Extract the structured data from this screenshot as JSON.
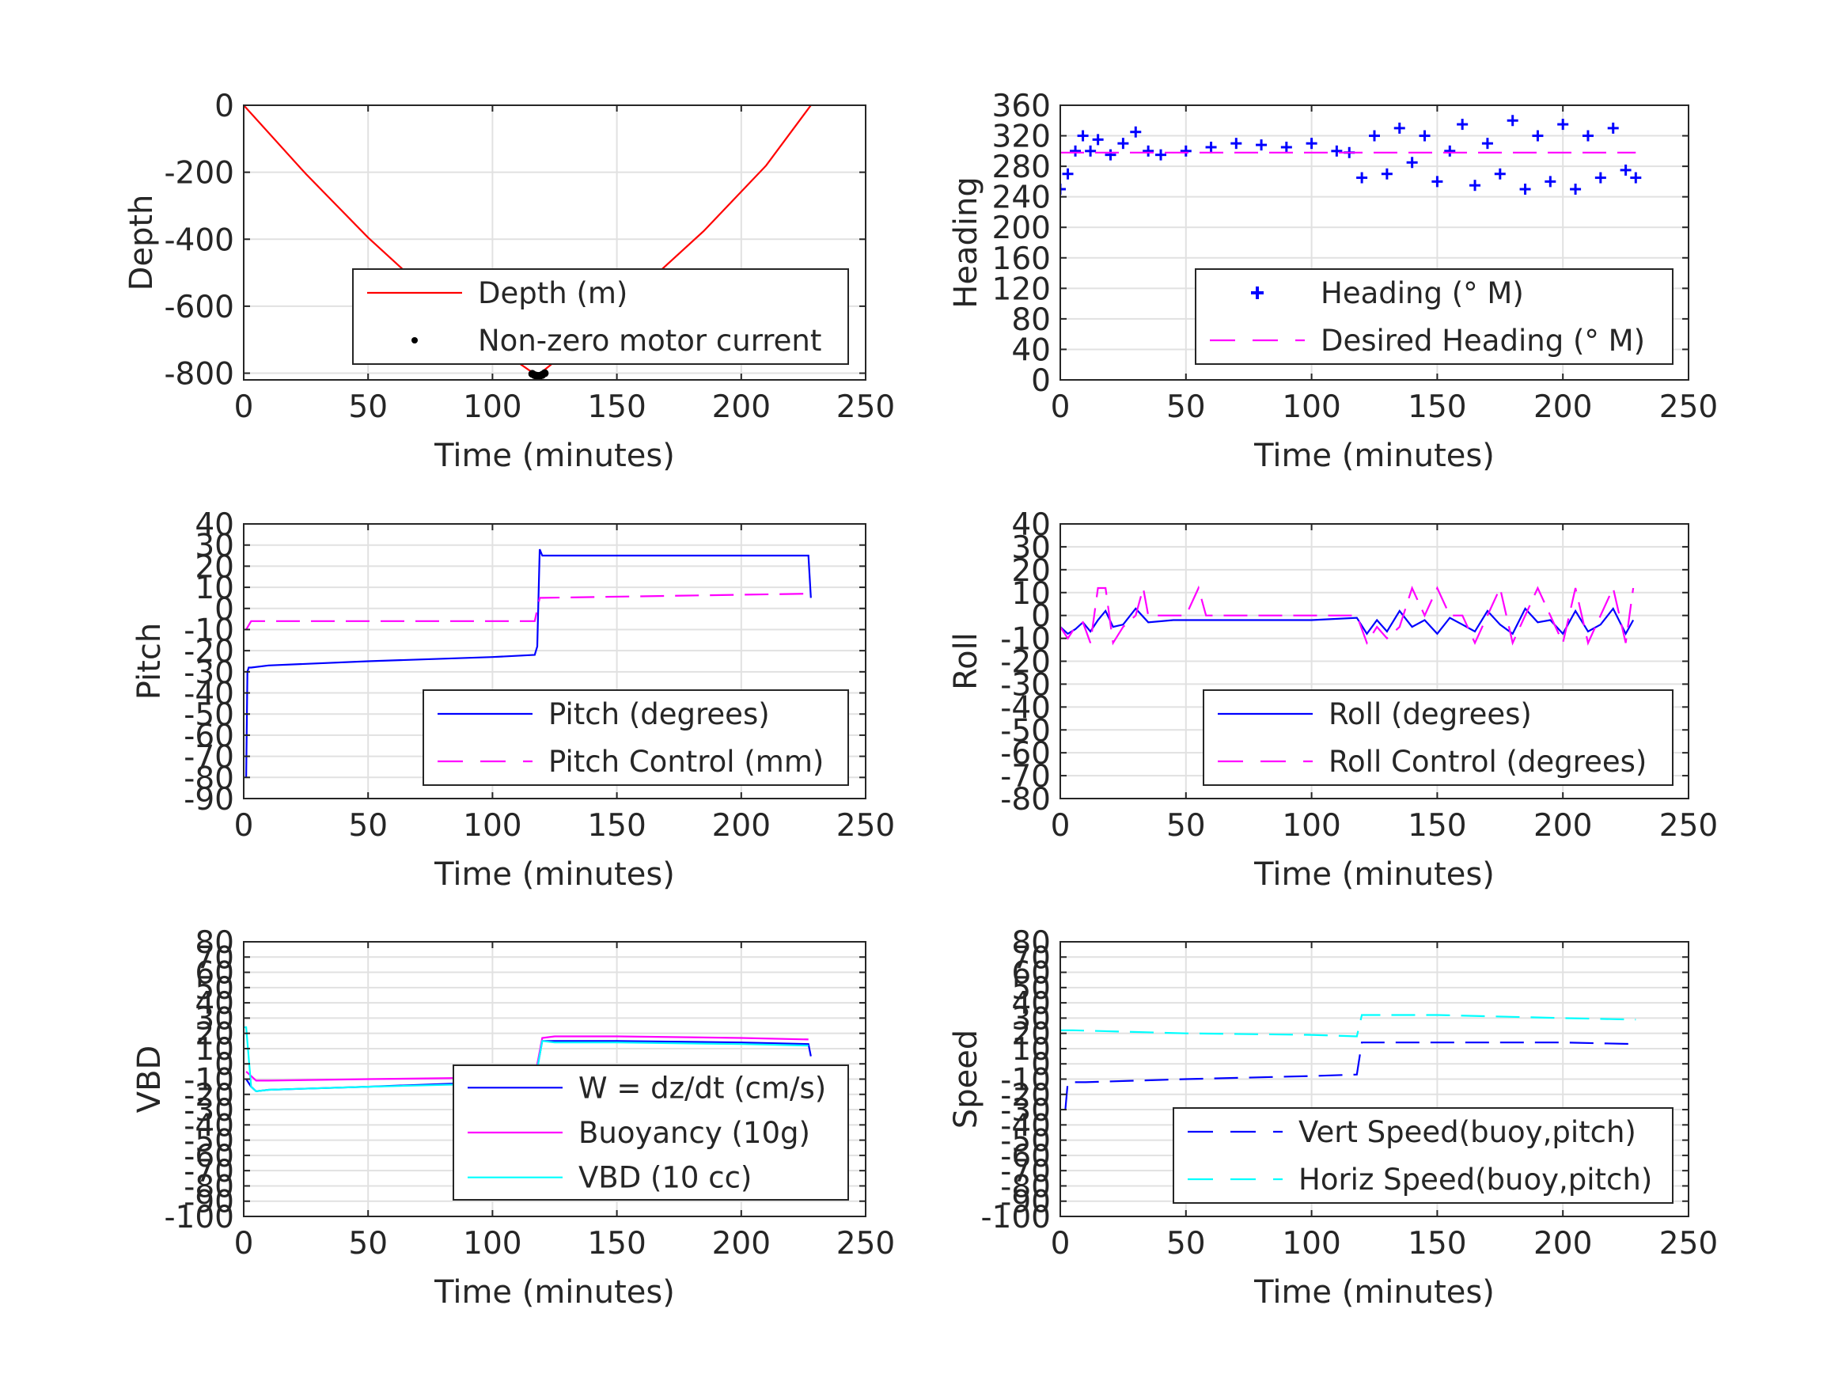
{
  "chart_data": [
    {
      "id": "depth",
      "type": "line",
      "xlabel": "Time (minutes)",
      "ylabel": "Depth",
      "xlim": [
        0,
        250
      ],
      "ylim": [
        -820,
        0
      ],
      "xticks": [
        "0",
        "50",
        "100",
        "150",
        "200",
        "250"
      ],
      "yticks": [
        "0",
        "-200",
        "-400",
        "-600",
        "-800"
      ],
      "ytick_values": [
        0,
        -200,
        -400,
        -600,
        -800
      ],
      "grid": true,
      "legend_position": "bottom-right",
      "series": [
        {
          "name": "Depth (m)",
          "color": "#ff0000",
          "style": "solid",
          "x": [
            0,
            25,
            50,
            75,
            100,
            118,
            135,
            160,
            185,
            210,
            228
          ],
          "y": [
            0,
            -205,
            -395,
            -565,
            -715,
            -808,
            -705,
            -545,
            -375,
            -180,
            0
          ]
        },
        {
          "name": "Non-zero motor current",
          "color": "#000000",
          "style": "dot",
          "x": [
            116,
            117,
            118,
            119,
            120,
            121
          ],
          "y": [
            -802,
            -806,
            -808,
            -808,
            -805,
            -800
          ]
        }
      ]
    },
    {
      "id": "heading",
      "type": "scatter",
      "xlabel": "Time (minutes)",
      "ylabel": "Heading",
      "xlim": [
        0,
        250
      ],
      "ylim": [
        0,
        360
      ],
      "xticks": [
        "0",
        "50",
        "100",
        "150",
        "200",
        "250"
      ],
      "yticks": [
        "360",
        "320",
        "280",
        "240",
        "200",
        "160",
        "120",
        "80",
        "40",
        "0"
      ],
      "ytick_values": [
        360,
        320,
        280,
        240,
        200,
        160,
        120,
        80,
        40,
        0
      ],
      "grid": true,
      "legend_position": "bottom-right",
      "series": [
        {
          "name": "Heading (° M)",
          "color": "#0000ff",
          "style": "plus",
          "x": [
            0,
            3,
            6,
            9,
            12,
            15,
            20,
            25,
            30,
            35,
            40,
            50,
            60,
            70,
            80,
            90,
            100,
            110,
            115,
            120,
            125,
            130,
            135,
            140,
            145,
            150,
            155,
            160,
            165,
            170,
            175,
            180,
            185,
            190,
            195,
            200,
            205,
            210,
            215,
            220,
            225,
            229
          ],
          "y": [
            250,
            270,
            300,
            320,
            300,
            315,
            295,
            310,
            325,
            300,
            295,
            300,
            305,
            310,
            308,
            305,
            310,
            300,
            298,
            265,
            320,
            270,
            330,
            285,
            320,
            260,
            300,
            335,
            255,
            310,
            270,
            340,
            250,
            320,
            260,
            335,
            250,
            320,
            265,
            330,
            275,
            265
          ]
        },
        {
          "name": "Desired Heading (° M)",
          "color": "#ff00ff",
          "style": "dash",
          "x": [
            0,
            229
          ],
          "y": [
            298,
            298
          ]
        }
      ]
    },
    {
      "id": "pitch",
      "type": "line",
      "xlabel": "Time (minutes)",
      "ylabel": "Pitch",
      "xlim": [
        0,
        250
      ],
      "ylim": [
        -90,
        40
      ],
      "xticks": [
        "0",
        "50",
        "100",
        "150",
        "200",
        "250"
      ],
      "yticks": [
        "40",
        "30",
        "20",
        "10",
        "0",
        "-10",
        "-20",
        "-30",
        "-40",
        "-50",
        "-60",
        "-70",
        "-80",
        "-90"
      ],
      "ytick_values": [
        40,
        30,
        20,
        10,
        0,
        -10,
        -20,
        -30,
        -40,
        -50,
        -60,
        -70,
        -80,
        -90
      ],
      "grid": true,
      "legend_position": "bottom-right",
      "series": [
        {
          "name": "Pitch (degrees)",
          "color": "#0000ff",
          "style": "solid",
          "x": [
            1,
            1.5,
            2,
            3,
            10,
            50,
            100,
            117,
            118,
            119,
            120,
            150,
            200,
            227,
            228
          ],
          "y": [
            -80,
            -30,
            -28,
            -28,
            -27,
            -25,
            -23,
            -22,
            -18,
            28,
            25,
            25,
            25,
            25,
            5
          ]
        },
        {
          "name": "Pitch Control (mm)",
          "color": "#ff00ff",
          "style": "dash",
          "x": [
            1,
            2,
            3,
            117,
            119,
            120,
            228
          ],
          "y": [
            -10,
            -8,
            -6,
            -6,
            5,
            5,
            7
          ]
        }
      ]
    },
    {
      "id": "roll",
      "type": "line",
      "xlabel": "Time (minutes)",
      "ylabel": "Roll",
      "xlim": [
        0,
        250
      ],
      "ylim": [
        -80,
        40
      ],
      "xticks": [
        "0",
        "50",
        "100",
        "150",
        "200",
        "250"
      ],
      "yticks": [
        "40",
        "30",
        "20",
        "10",
        "0",
        "-10",
        "-20",
        "-30",
        "-40",
        "-50",
        "-60",
        "-70",
        "-80"
      ],
      "ytick_values": [
        40,
        30,
        20,
        10,
        0,
        -10,
        -20,
        -30,
        -40,
        -50,
        -60,
        -70,
        -80
      ],
      "grid": true,
      "legend_position": "bottom-right",
      "series": [
        {
          "name": "Roll (degrees)",
          "color": "#0000ff",
          "style": "solid",
          "x": [
            0,
            3,
            6,
            9,
            12,
            15,
            18,
            21,
            25,
            30,
            35,
            45,
            55,
            60,
            80,
            100,
            118,
            122,
            126,
            130,
            135,
            140,
            145,
            150,
            155,
            160,
            165,
            170,
            175,
            180,
            185,
            190,
            195,
            200,
            205,
            210,
            215,
            220,
            225,
            228
          ],
          "y": [
            -5,
            -8,
            -6,
            -3,
            -7,
            -2,
            2,
            -5,
            -4,
            3,
            -3,
            -2,
            -2,
            -2,
            -2,
            -2,
            -1,
            -8,
            -2,
            -7,
            2,
            -5,
            -2,
            -8,
            -1,
            -4,
            -7,
            2,
            -4,
            -8,
            3,
            -3,
            -2,
            -8,
            2,
            -7,
            -4,
            3,
            -8,
            -2
          ]
        },
        {
          "name": "Roll Control (degrees)",
          "color": "#ff00ff",
          "style": "dash",
          "x": [
            0,
            3,
            6,
            9,
            12,
            15,
            18,
            21,
            25,
            30,
            33,
            35,
            50,
            55,
            58,
            100,
            118,
            122,
            126,
            130,
            135,
            140,
            145,
            150,
            155,
            160,
            165,
            170,
            175,
            180,
            185,
            190,
            195,
            200,
            205,
            210,
            215,
            220,
            225,
            228
          ],
          "y": [
            -5,
            -10,
            -5,
            -3,
            -12,
            12,
            12,
            -12,
            -5,
            0,
            12,
            0,
            0,
            12,
            0,
            0,
            0,
            -12,
            -5,
            -10,
            -5,
            12,
            0,
            12,
            0,
            0,
            -12,
            0,
            12,
            -12,
            0,
            12,
            0,
            -12,
            12,
            -12,
            0,
            12,
            -12,
            12
          ]
        }
      ]
    },
    {
      "id": "vbd",
      "type": "line",
      "xlabel": "Time (minutes)",
      "ylabel": "VBD",
      "xlim": [
        0,
        250
      ],
      "ylim": [
        -100,
        80
      ],
      "xticks": [
        "0",
        "50",
        "100",
        "150",
        "200",
        "250"
      ],
      "yticks": [
        "80",
        "70",
        "60",
        "50",
        "40",
        "30",
        "20",
        "10",
        "0",
        "-10",
        "-20",
        "-30",
        "-40",
        "-50",
        "-60",
        "-70",
        "-80",
        "-90",
        "-100"
      ],
      "ytick_values": [
        80,
        70,
        60,
        50,
        40,
        30,
        20,
        10,
        0,
        -10,
        -20,
        -30,
        -40,
        -50,
        -60,
        -70,
        -80,
        -90,
        -100
      ],
      "grid": true,
      "legend_position": "bottom-right",
      "series": [
        {
          "name": "W = dz/dt (cm/s)",
          "color": "#0000ff",
          "style": "solid",
          "x": [
            1,
            3,
            5,
            10,
            50,
            100,
            117,
            120,
            125,
            150,
            200,
            227,
            228
          ],
          "y": [
            -10,
            -15,
            -18,
            -17,
            -15,
            -12,
            -12,
            15,
            15,
            15,
            14,
            13,
            5
          ]
        },
        {
          "name": "Buoyancy (10g)",
          "color": "#ff00ff",
          "style": "solid",
          "x": [
            1,
            3,
            5,
            10,
            50,
            100,
            117,
            120,
            125,
            150,
            200,
            227
          ],
          "y": [
            -5,
            -8,
            -11,
            -11,
            -10,
            -9,
            -9,
            17,
            18,
            18,
            17,
            16
          ]
        },
        {
          "name": "VBD (10 cc)",
          "color": "#00ffff",
          "style": "solid",
          "x": [
            0,
            1,
            3,
            5,
            10,
            50,
            100,
            117,
            120,
            125,
            150,
            200,
            227
          ],
          "y": [
            24,
            24,
            -15,
            -18,
            -17,
            -15,
            -13,
            -12,
            15,
            14,
            14,
            13,
            12
          ]
        }
      ]
    },
    {
      "id": "speed",
      "type": "line",
      "xlabel": "Time (minutes)",
      "ylabel": "Speed",
      "xlim": [
        0,
        250
      ],
      "ylim": [
        -100,
        80
      ],
      "xticks": [
        "0",
        "50",
        "100",
        "150",
        "200",
        "250"
      ],
      "yticks": [
        "80",
        "70",
        "60",
        "50",
        "40",
        "30",
        "20",
        "10",
        "0",
        "-10",
        "-20",
        "-30",
        "-40",
        "-50",
        "-60",
        "-70",
        "-80",
        "-90",
        "-100"
      ],
      "ytick_values": [
        80,
        70,
        60,
        50,
        40,
        30,
        20,
        10,
        0,
        -10,
        -20,
        -30,
        -40,
        -50,
        -60,
        -70,
        -80,
        -90,
        -100
      ],
      "grid": true,
      "legend_position": "bottom-right",
      "series": [
        {
          "name": "Vert Speed(buoy,pitch)",
          "color": "#0000ff",
          "style": "dash",
          "x": [
            2,
            3,
            5,
            10,
            50,
            100,
            118,
            120,
            125,
            150,
            200,
            229
          ],
          "y": [
            -30,
            -12,
            -12,
            -12,
            -10,
            -8,
            -7,
            14,
            14,
            14,
            14,
            13
          ]
        },
        {
          "name": "Horiz Speed(buoy,pitch)",
          "color": "#00ffff",
          "style": "dash",
          "x": [
            0,
            5,
            50,
            100,
            118,
            120,
            125,
            150,
            200,
            229
          ],
          "y": [
            22,
            22,
            20,
            19,
            18,
            32,
            32,
            32,
            30,
            29
          ]
        }
      ]
    }
  ]
}
